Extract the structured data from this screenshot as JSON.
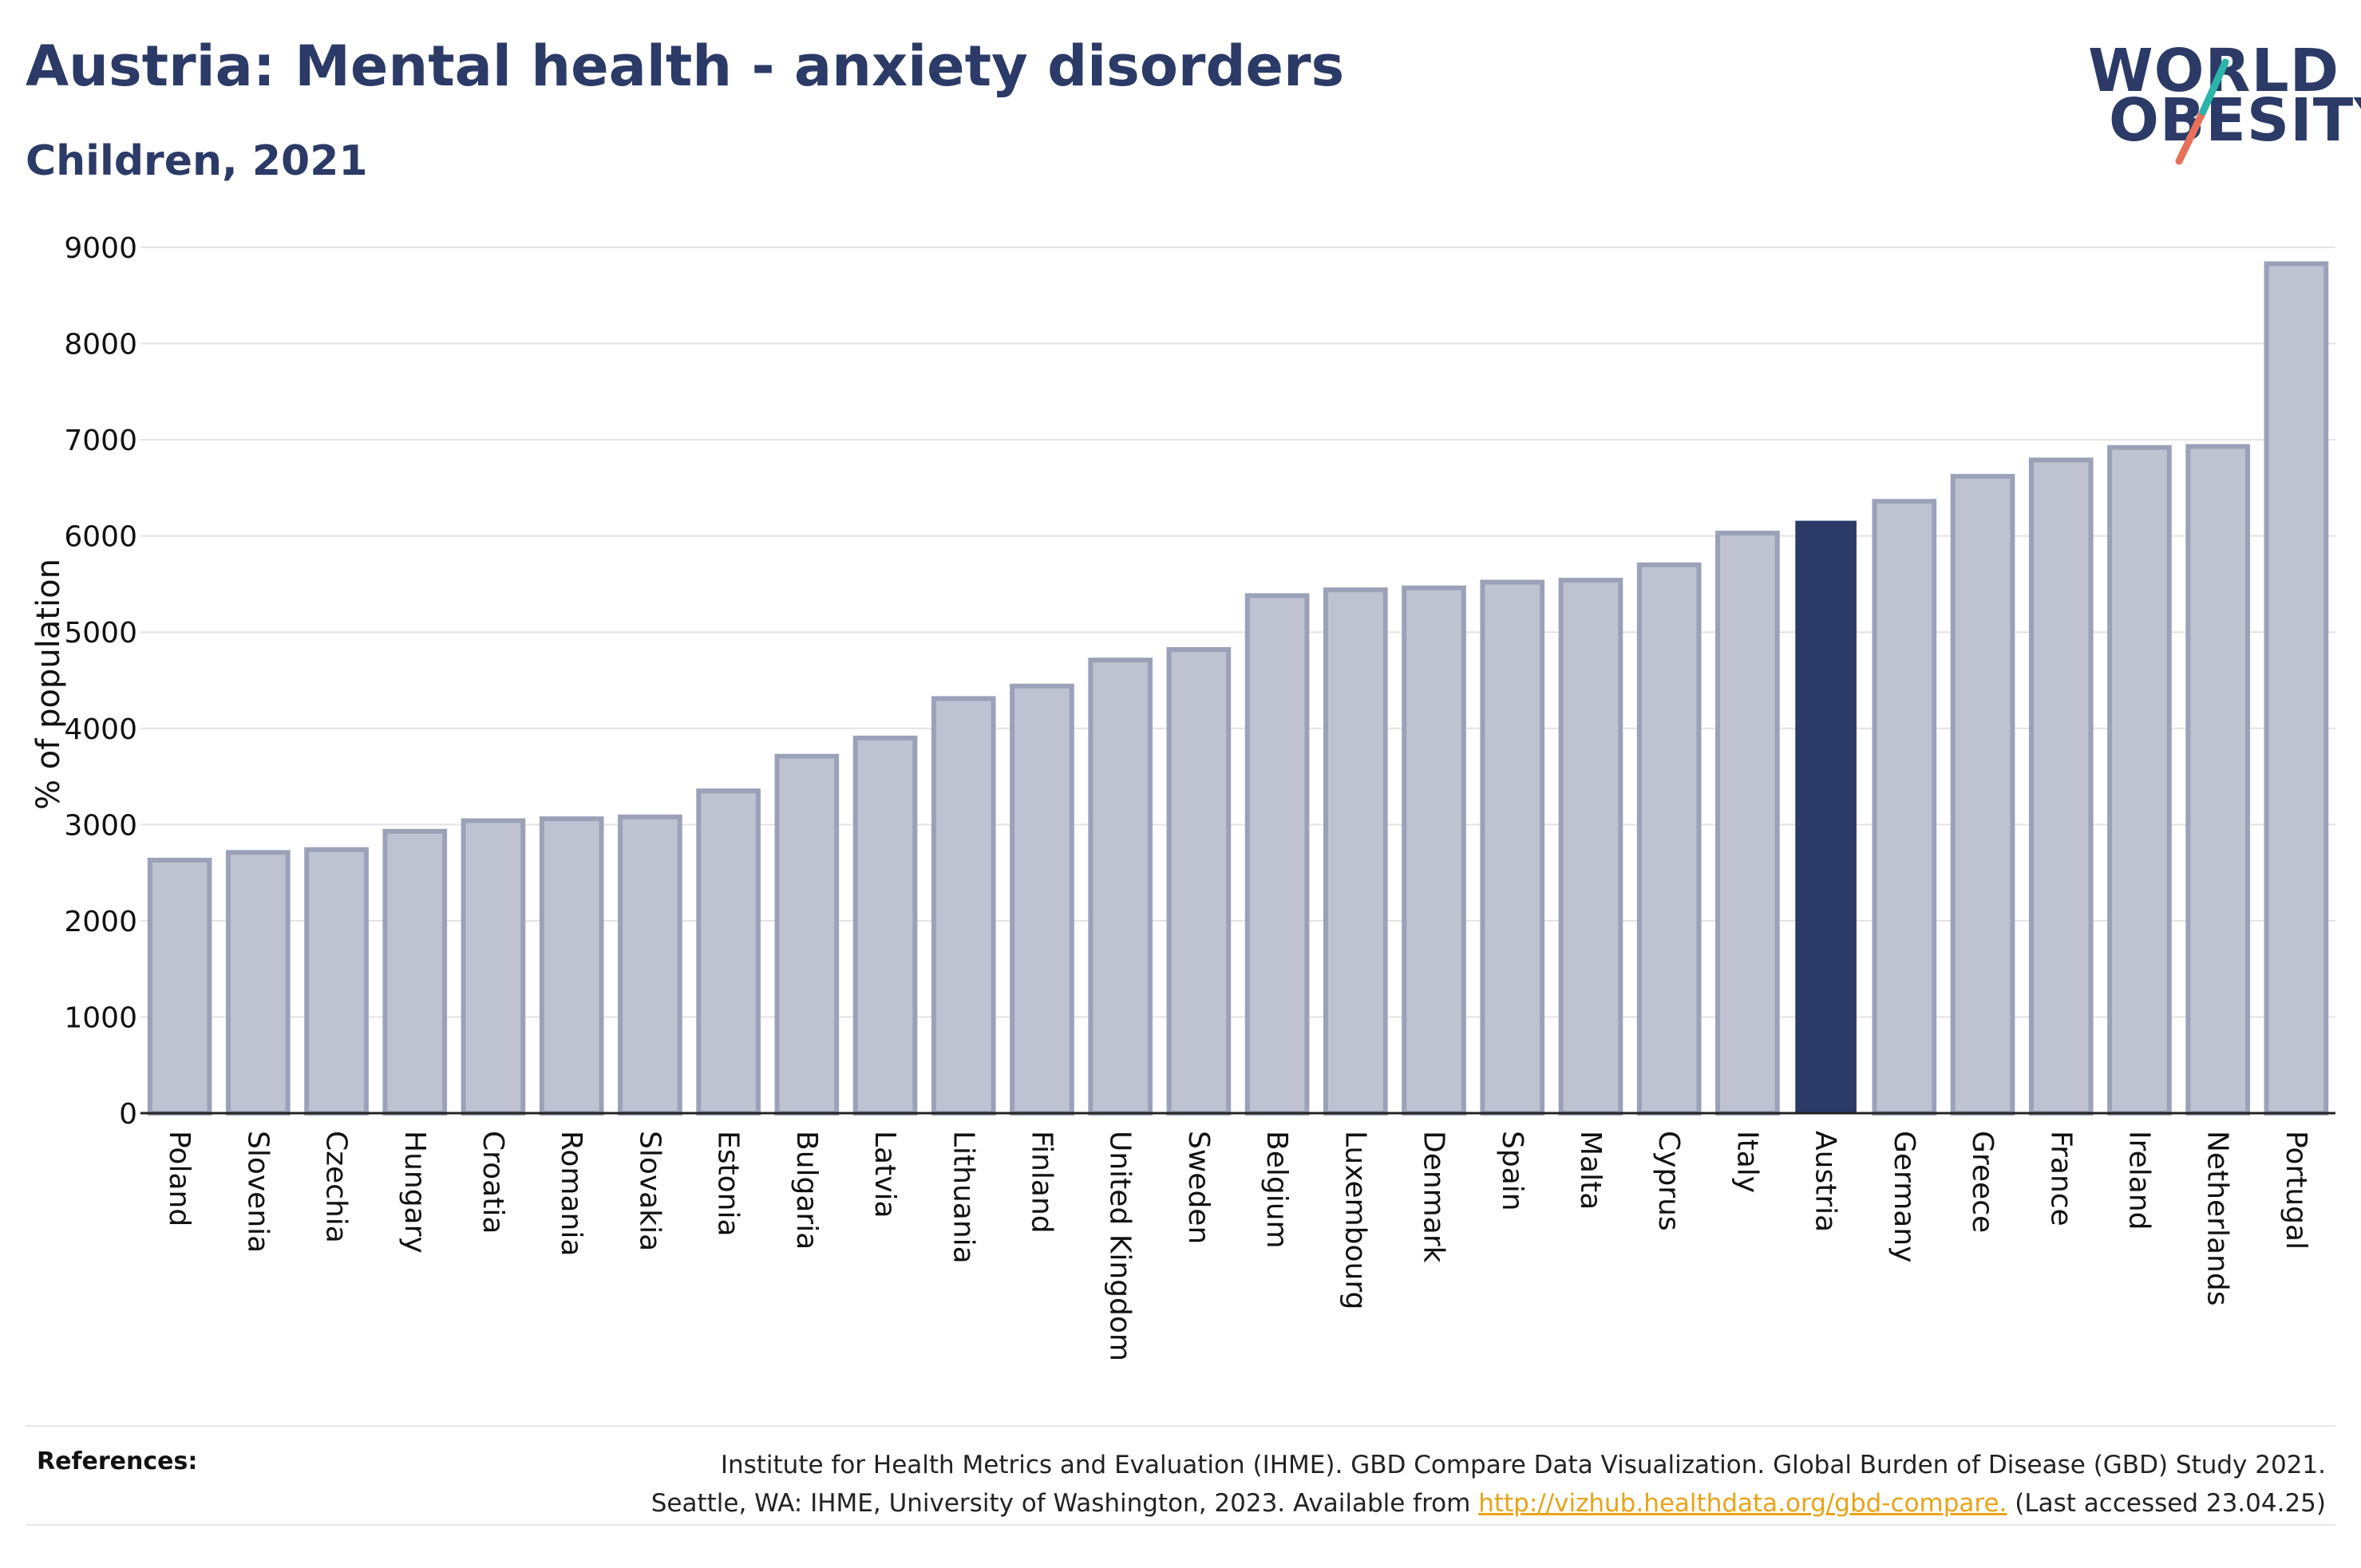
{
  "header": {
    "title": "Austria: Mental health - anxiety disorders",
    "subtitle": "Children, 2021"
  },
  "logo": {
    "line1": "WORLD",
    "line2": "OBESITY",
    "accent_teal": "#2bb5a8",
    "accent_coral": "#e8705a"
  },
  "colors": {
    "primary": "#2b3a67",
    "bar_fill": "#bfc3d1",
    "bar_stroke": "#9aa1b8",
    "highlight": "#2b3a67",
    "link": "#e8a317"
  },
  "chart_data": {
    "type": "bar",
    "title": "Austria: Mental health - anxiety disorders",
    "subtitle": "Children, 2021",
    "xlabel": "",
    "ylabel": "% of population",
    "ylim": [
      0,
      9000
    ],
    "yticks": [
      0,
      1000,
      2000,
      3000,
      4000,
      5000,
      6000,
      7000,
      8000,
      9000
    ],
    "grid": true,
    "highlight": "Austria",
    "categories": [
      "Poland",
      "Slovenia",
      "Czechia",
      "Hungary",
      "Croatia",
      "Romania",
      "Slovakia",
      "Estonia",
      "Bulgaria",
      "Latvia",
      "Lithuania",
      "Finland",
      "United Kingdom",
      "Sweden",
      "Belgium",
      "Luxembourg",
      "Denmark",
      "Spain",
      "Malta",
      "Cyprus",
      "Italy",
      "Austria",
      "Germany",
      "Greece",
      "France",
      "Ireland",
      "Netherlands",
      "Portugal"
    ],
    "values": [
      2630,
      2710,
      2740,
      2930,
      3040,
      3060,
      3080,
      3350,
      3710,
      3900,
      4310,
      4440,
      4710,
      4820,
      5380,
      5440,
      5460,
      5520,
      5540,
      5700,
      6030,
      6150,
      6360,
      6620,
      6790,
      6920,
      6930,
      8830
    ]
  },
  "references": {
    "label": "References:",
    "line1": "Institute for Health Metrics and Evaluation (IHME). GBD Compare Data Visualization. Global Burden of Disease (GBD) Study 2021.",
    "line2_prefix": "Seattle, WA: IHME, University of Washington, 2023. Available from ",
    "link": "http://vizhub.healthdata.org/gbd-compare.",
    "line2_suffix": " (Last accessed 23.04.25)"
  }
}
